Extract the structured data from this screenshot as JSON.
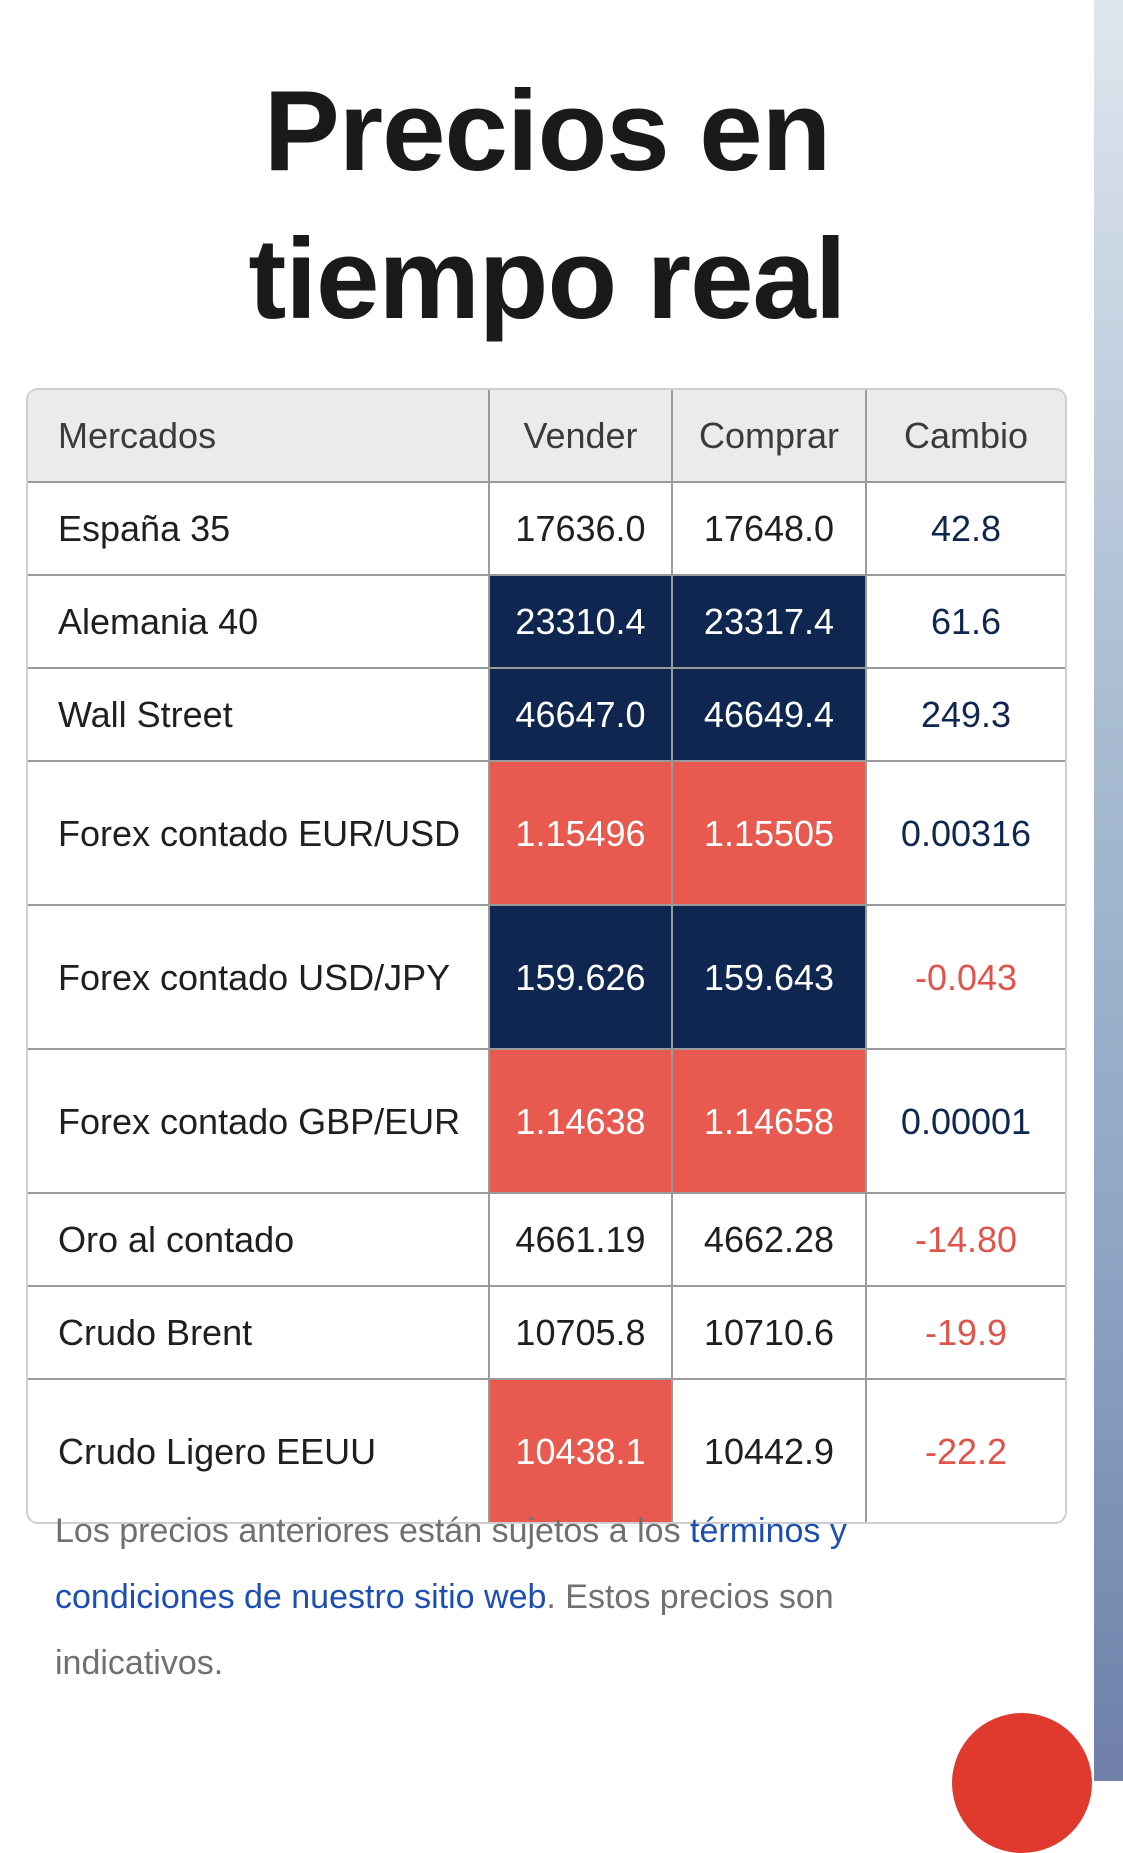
{
  "header": {
    "title_lines": [
      "Precios en",
      "tiempo real"
    ]
  },
  "table": {
    "columns": [
      "Mercados",
      "Vender",
      "Comprar",
      "Cambio"
    ],
    "rows": [
      [
        "España 35",
        "17636.0",
        "17648.0",
        "42.8"
      ],
      [
        "Alemania 40",
        "23310.4",
        "23317.4",
        "61.6"
      ],
      [
        "Wall Street",
        "46647.0",
        "46649.4",
        "249.3"
      ],
      [
        "Forex contado EUR/USD",
        "1.15496",
        "1.15505",
        "0.00316"
      ],
      [
        "Forex contado USD/JPY",
        "159.626",
        "159.643",
        "-0.043"
      ],
      [
        "Forex contado GBP/EUR",
        "1.14638",
        "1.14658",
        "0.00001"
      ],
      [
        "Oro al contado",
        "4661.19",
        "4662.28",
        "-14.80"
      ],
      [
        "Crudo Brent",
        "10705.8",
        "10710.6",
        "-19.9"
      ],
      [
        "Crudo Ligero EEUU",
        "10438.1",
        "10442.9",
        "-22.2"
      ]
    ],
    "cell_colors": [
      [
        null,
        null,
        null,
        null
      ],
      [
        null,
        "#0f2750",
        "#0f2750",
        null
      ],
      [
        null,
        "#0f2750",
        "#0f2750",
        null
      ],
      [
        null,
        "#e85a50",
        "#e85a50",
        null
      ],
      [
        null,
        "#0f2750",
        "#0f2750",
        null
      ],
      [
        null,
        "#e85a50",
        "#e85a50",
        null
      ],
      [
        null,
        null,
        null,
        null
      ],
      [
        null,
        null,
        null,
        null
      ],
      [
        null,
        "#e85a50",
        null,
        null
      ]
    ],
    "change_colors": {
      "up": "#0f2750",
      "down": "#e0554b"
    }
  },
  "footer": {
    "segments": [
      {
        "text": "Los precios anteriores están sujetos a los ",
        "link": false
      },
      {
        "text": "términos y condiciones de nuestro sitio web",
        "link": true
      },
      {
        "text": ". Estos precios son indicativos.",
        "link": false
      }
    ]
  }
}
